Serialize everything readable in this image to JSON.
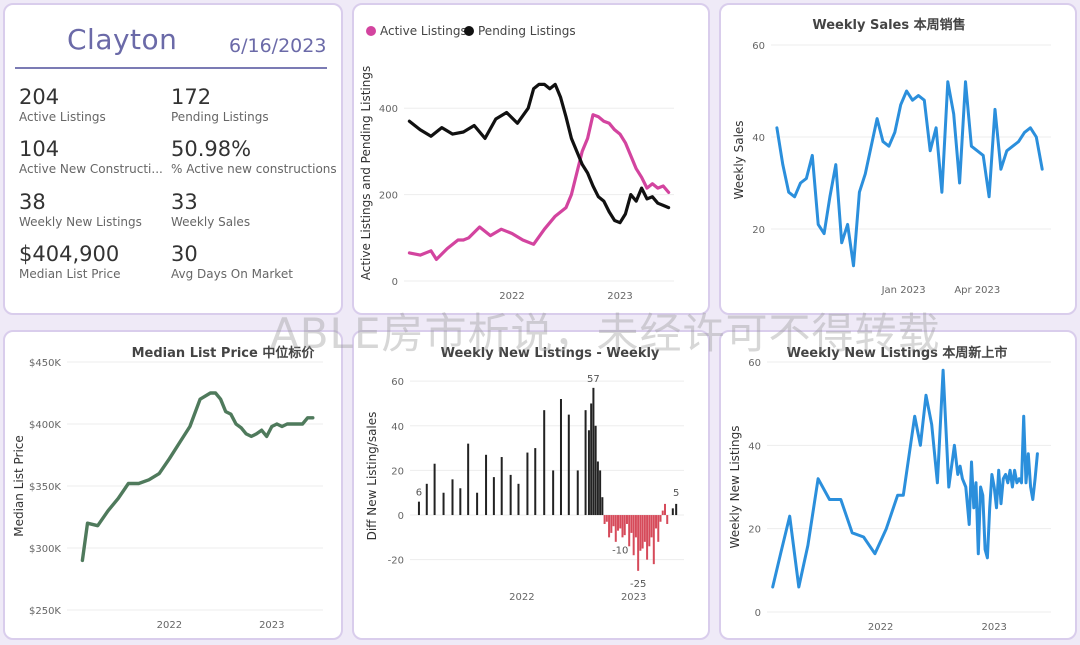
{
  "kpi": {
    "city": "Clayton",
    "date": "6/16/2023",
    "items": [
      {
        "value": "204",
        "label": "Active Listings"
      },
      {
        "value": "172",
        "label": "Pending Listings"
      },
      {
        "value": "104",
        "label": "Active New Constructi..."
      },
      {
        "value": "50.98%",
        "label": "% Active new constructions"
      },
      {
        "value": "38",
        "label": "Weekly New Listings"
      },
      {
        "value": "33",
        "label": "Weekly Sales"
      },
      {
        "value": "$404,900",
        "label": "Median List Price"
      },
      {
        "value": "30",
        "label": "Avg Days On Market"
      }
    ]
  },
  "watermark": "ABLE房市析说，未经许可不得转载",
  "colors": {
    "pink": "#d3449f",
    "black": "#111111",
    "blue": "#2b8fdc",
    "green": "#4f7a5c",
    "red": "#d64a5a",
    "dark": "#222222"
  },
  "chart_data": [
    {
      "type": "line",
      "title": "",
      "legend": [
        "Active Listings",
        "Pending Listings"
      ],
      "legend_position": "top-left",
      "ylabel": "Active Listings and Pending Listings",
      "ylim": [
        0,
        500
      ],
      "yticks": [
        "0",
        "200",
        "400"
      ],
      "xlim": [
        2021.0,
        2023.5
      ],
      "xticks": [
        {
          "x": 2022.0,
          "label": "2022"
        },
        {
          "x": 2023.0,
          "label": "2023"
        }
      ],
      "series": [
        {
          "name": "Active Listings",
          "color": "#d3449f",
          "x": [
            2021.05,
            2021.15,
            2021.25,
            2021.3,
            2021.4,
            2021.5,
            2021.55,
            2021.6,
            2021.7,
            2021.8,
            2021.9,
            2022.0,
            2022.1,
            2022.2,
            2022.3,
            2022.4,
            2022.5,
            2022.55,
            2022.6,
            2022.65,
            2022.7,
            2022.75,
            2022.8,
            2022.85,
            2022.9,
            2022.95,
            2023.0,
            2023.05,
            2023.1,
            2023.15,
            2023.2,
            2023.25,
            2023.3,
            2023.35,
            2023.4,
            2023.45
          ],
          "y": [
            65,
            60,
            70,
            50,
            75,
            95,
            95,
            100,
            125,
            105,
            120,
            110,
            95,
            85,
            120,
            150,
            170,
            200,
            250,
            300,
            330,
            385,
            380,
            370,
            365,
            350,
            340,
            320,
            290,
            260,
            240,
            215,
            225,
            215,
            220,
            205
          ]
        },
        {
          "name": "Pending Listings",
          "color": "#111111",
          "x": [
            2021.05,
            2021.15,
            2021.25,
            2021.35,
            2021.45,
            2021.55,
            2021.65,
            2021.75,
            2021.85,
            2021.95,
            2022.05,
            2022.15,
            2022.2,
            2022.25,
            2022.3,
            2022.35,
            2022.4,
            2022.45,
            2022.5,
            2022.55,
            2022.6,
            2022.65,
            2022.7,
            2022.75,
            2022.8,
            2022.85,
            2022.9,
            2022.95,
            2023.0,
            2023.05,
            2023.1,
            2023.15,
            2023.2,
            2023.25,
            2023.3,
            2023.35,
            2023.4,
            2023.45
          ],
          "y": [
            370,
            350,
            335,
            355,
            340,
            345,
            360,
            330,
            375,
            390,
            365,
            400,
            445,
            455,
            455,
            445,
            455,
            425,
            380,
            330,
            300,
            270,
            250,
            220,
            195,
            185,
            160,
            140,
            135,
            155,
            200,
            185,
            215,
            190,
            195,
            180,
            175,
            170
          ]
        }
      ]
    },
    {
      "type": "line",
      "title": "Weekly Sales 本周销售",
      "ylabel": "Weekly Sales",
      "ylim": [
        10,
        60
      ],
      "yticks": [
        "20",
        "40",
        "60"
      ],
      "xlim": [
        2022.55,
        2023.5
      ],
      "xticks": [
        {
          "x": 2023.0,
          "label": "Jan 2023"
        },
        {
          "x": 2023.25,
          "label": "Apr 2023"
        }
      ],
      "series": [
        {
          "name": "Weekly Sales",
          "color": "#2b8fdc",
          "x": [
            2022.57,
            2022.59,
            2022.61,
            2022.63,
            2022.65,
            2022.67,
            2022.69,
            2022.71,
            2022.73,
            2022.75,
            2022.77,
            2022.79,
            2022.81,
            2022.83,
            2022.85,
            2022.87,
            2022.89,
            2022.91,
            2022.93,
            2022.95,
            2022.97,
            2022.99,
            2023.01,
            2023.03,
            2023.05,
            2023.07,
            2023.09,
            2023.11,
            2023.13,
            2023.15,
            2023.17,
            2023.19,
            2023.21,
            2023.23,
            2023.25,
            2023.27,
            2023.29,
            2023.31,
            2023.33,
            2023.35,
            2023.37,
            2023.39,
            2023.41,
            2023.43,
            2023.45,
            2023.47
          ],
          "y": [
            42,
            34,
            28,
            27,
            30,
            31,
            36,
            21,
            19,
            27,
            34,
            17,
            21,
            12,
            28,
            32,
            38,
            44,
            39,
            38,
            41,
            47,
            50,
            48,
            49,
            48,
            37,
            42,
            28,
            52,
            45,
            30,
            52,
            38,
            37,
            36,
            27,
            46,
            33,
            37,
            38,
            39,
            41,
            42,
            40,
            33
          ]
        }
      ]
    },
    {
      "type": "line",
      "title": "Median List Price  中位标价",
      "ylabel": "Median List Price",
      "ylim": [
        250,
        450
      ],
      "yticks": [
        "$250K",
        "$300K",
        "$350K",
        "$400K",
        "$450K"
      ],
      "xlim": [
        2021.0,
        2023.5
      ],
      "xticks": [
        {
          "x": 2022.0,
          "label": "2022"
        },
        {
          "x": 2023.0,
          "label": "2023"
        }
      ],
      "series": [
        {
          "name": "Median List Price",
          "color": "#4f7a5c",
          "x": [
            2021.15,
            2021.2,
            2021.3,
            2021.4,
            2021.5,
            2021.6,
            2021.7,
            2021.8,
            2021.9,
            2022.0,
            2022.1,
            2022.2,
            2022.3,
            2022.4,
            2022.45,
            2022.5,
            2022.55,
            2022.6,
            2022.65,
            2022.7,
            2022.75,
            2022.8,
            2022.85,
            2022.9,
            2022.95,
            2023.0,
            2023.05,
            2023.1,
            2023.15,
            2023.2,
            2023.3,
            2023.35,
            2023.4
          ],
          "y": [
            290,
            320,
            318,
            330,
            340,
            352,
            352,
            355,
            360,
            372,
            385,
            398,
            420,
            425,
            425,
            420,
            410,
            408,
            400,
            397,
            392,
            390,
            392,
            395,
            390,
            398,
            400,
            398,
            400,
            400,
            400,
            405,
            405
          ]
        }
      ]
    },
    {
      "type": "bar",
      "title": "Weekly New Listings - Weekly",
      "ylabel": "Diff New Listing/sales",
      "ylim": [
        -30,
        65
      ],
      "yticks": [
        "-20",
        "0",
        "20",
        "40",
        "60"
      ],
      "xticks": [
        {
          "x": 2022.0,
          "label": "2022"
        },
        {
          "x": 2023.0,
          "label": "2023"
        }
      ],
      "annotations": [
        "57",
        "6",
        "-10",
        "-25",
        "5"
      ],
      "series": [
        {
          "name": "positive",
          "color": "#222222",
          "x": [
            2021.08,
            2021.15,
            2021.22,
            2021.3,
            2021.38,
            2021.45,
            2021.52,
            2021.6,
            2021.68,
            2021.75,
            2021.82,
            2021.9,
            2021.97,
            2022.05,
            2022.12,
            2022.2,
            2022.28,
            2022.35,
            2022.42,
            2022.5,
            2022.57,
            2022.6,
            2022.62,
            2022.64,
            2022.66,
            2022.68,
            2022.7,
            2022.72
          ],
          "y": [
            6,
            14,
            23,
            10,
            16,
            12,
            32,
            10,
            27,
            17,
            26,
            18,
            14,
            28,
            30,
            47,
            20,
            52,
            45,
            20,
            47,
            38,
            50,
            57,
            40,
            24,
            20,
            8
          ]
        },
        {
          "name": "negative",
          "color": "#d64a5a",
          "x": [
            2022.74,
            2022.76,
            2022.78,
            2022.8,
            2022.82,
            2022.84,
            2022.86,
            2022.88,
            2022.9,
            2022.92,
            2022.94,
            2022.96,
            2022.98,
            2023.0,
            2023.02,
            2023.04,
            2023.06,
            2023.08,
            2023.1,
            2023.12,
            2023.14,
            2023.16,
            2023.18,
            2023.2,
            2023.22,
            2023.24,
            2023.26,
            2023.28,
            2023.3
          ],
          "y": [
            -4,
            -3,
            -10,
            -8,
            -5,
            -12,
            -7,
            -6,
            -10,
            -9,
            -4,
            -14,
            -8,
            -18,
            -10,
            -25,
            -16,
            -15,
            -12,
            -20,
            -14,
            -10,
            -22,
            -6,
            -12,
            -3,
            2,
            5,
            -4
          ]
        },
        {
          "name": "end",
          "color": "#222222",
          "x": [
            2023.35,
            2023.38
          ],
          "y": [
            3,
            5
          ]
        }
      ]
    },
    {
      "type": "line",
      "title": "Weekly New Listings  本周新上市",
      "ylabel": "Weekly New Listings",
      "ylim": [
        0,
        60
      ],
      "yticks": [
        "0",
        "20",
        "40",
        "60"
      ],
      "xlim": [
        2021.0,
        2023.5
      ],
      "xticks": [
        {
          "x": 2022.0,
          "label": "2022"
        },
        {
          "x": 2023.0,
          "label": "2023"
        }
      ],
      "series": [
        {
          "name": "Weekly New Listings",
          "color": "#2b8fdc",
          "x": [
            2021.05,
            2021.12,
            2021.2,
            2021.28,
            2021.36,
            2021.45,
            2021.55,
            2021.65,
            2021.75,
            2021.85,
            2021.95,
            2022.05,
            2022.15,
            2022.2,
            2022.3,
            2022.35,
            2022.4,
            2022.45,
            2022.5,
            2022.55,
            2022.6,
            2022.65,
            2022.68,
            2022.7,
            2022.72,
            2022.75,
            2022.78,
            2022.8,
            2022.82,
            2022.84,
            2022.86,
            2022.88,
            2022.9,
            2022.92,
            2022.94,
            2022.96,
            2022.98,
            2023.0,
            2023.02,
            2023.04,
            2023.06,
            2023.08,
            2023.1,
            2023.12,
            2023.14,
            2023.16,
            2023.18,
            2023.2,
            2023.22,
            2023.24,
            2023.26,
            2023.28,
            2023.3,
            2023.32,
            2023.34,
            2023.36,
            2023.38
          ],
          "y": [
            6,
            14,
            23,
            6,
            16,
            32,
            27,
            27,
            19,
            18,
            14,
            20,
            28,
            28,
            47,
            40,
            52,
            45,
            31,
            58,
            30,
            40,
            33,
            35,
            32,
            30,
            21,
            36,
            25,
            31,
            14,
            30,
            28,
            15,
            13,
            25,
            33,
            30,
            25,
            34,
            26,
            32,
            33,
            31,
            34,
            30,
            34,
            31,
            32,
            31,
            47,
            31,
            38,
            30,
            27,
            32,
            38
          ]
        }
      ]
    }
  ]
}
